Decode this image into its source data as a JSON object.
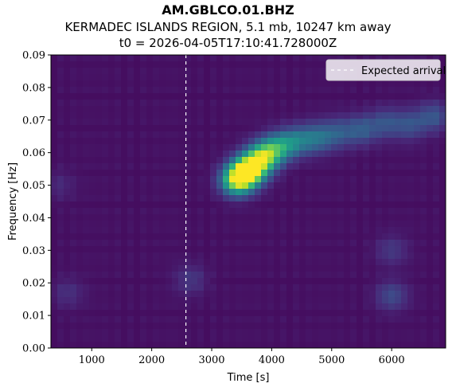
{
  "chart_data": {
    "type": "heatmap",
    "title": "AM.GBLCO.01.BHZ",
    "subtitle": "KERMADEC ISLANDS REGION, 5.1 mb, 10247 km away",
    "subtitle2": "t0 = 2026-04-05T17:10:41.728000Z",
    "xlabel": "Time [s]",
    "ylabel": "Frequency [Hz]",
    "xlim": [
      320,
      6900
    ],
    "ylim": [
      0.0,
      0.09
    ],
    "xticks": [
      1000,
      2000,
      3000,
      4000,
      5000,
      6000
    ],
    "xtick_labels": [
      "1000",
      "2000",
      "3000",
      "4000",
      "5000",
      "6000"
    ],
    "yticks": [
      0.0,
      0.01,
      0.02,
      0.03,
      0.04,
      0.05,
      0.06,
      0.07,
      0.08,
      0.09
    ],
    "ytick_labels": [
      "0.00",
      "0.01",
      "0.02",
      "0.03",
      "0.04",
      "0.05",
      "0.06",
      "0.07",
      "0.08",
      "0.09"
    ],
    "colormap": "viridis",
    "expected_arrival_s": 2570,
    "legend": {
      "label": "Expected arrival",
      "placement": "top-right"
    },
    "energy_blobs": [
      {
        "t": 3620,
        "f": 0.0545,
        "amp": 1.0
      },
      {
        "t": 3420,
        "f": 0.0515,
        "amp": 0.8
      },
      {
        "t": 3850,
        "f": 0.0585,
        "amp": 0.72
      },
      {
        "t": 4100,
        "f": 0.0615,
        "amp": 0.45
      },
      {
        "t": 4400,
        "f": 0.0635,
        "amp": 0.33
      },
      {
        "t": 4750,
        "f": 0.0645,
        "amp": 0.3
      },
      {
        "t": 5100,
        "f": 0.066,
        "amp": 0.22
      },
      {
        "t": 5500,
        "f": 0.067,
        "amp": 0.24
      },
      {
        "t": 5900,
        "f": 0.069,
        "amp": 0.2
      },
      {
        "t": 6300,
        "f": 0.0685,
        "amp": 0.2
      },
      {
        "t": 6700,
        "f": 0.071,
        "amp": 0.22
      },
      {
        "t": 6000,
        "f": 0.016,
        "amp": 0.18
      },
      {
        "t": 6000,
        "f": 0.03,
        "amp": 0.12
      },
      {
        "t": 2650,
        "f": 0.021,
        "amp": 0.12
      },
      {
        "t": 600,
        "f": 0.017,
        "amp": 0.09
      },
      {
        "t": 450,
        "f": 0.05,
        "amp": 0.07
      }
    ]
  }
}
